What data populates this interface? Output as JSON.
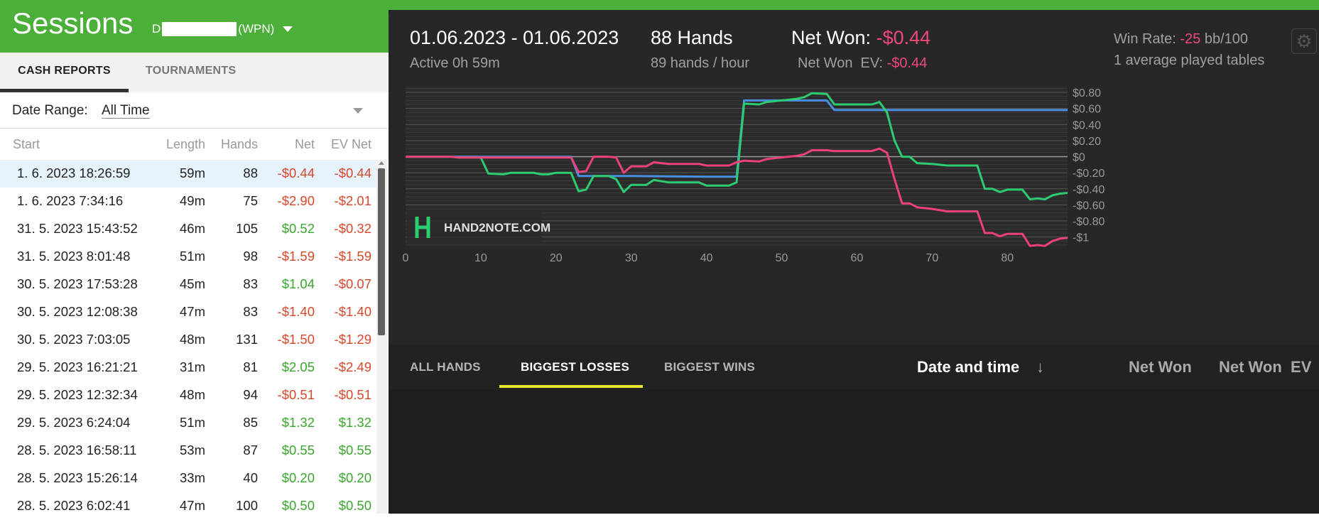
{
  "header": {
    "title": "Sessions",
    "account_prefix": "D",
    "account_suffix": "(WPN)"
  },
  "tabs": {
    "cash": "CASH REPORTS",
    "tournaments": "TOURNAMENTS"
  },
  "date_range": {
    "label": "Date Range:",
    "value": "All Time"
  },
  "table": {
    "headers": {
      "start": "Start",
      "length": "Length",
      "hands": "Hands",
      "net": "Net",
      "ev_net": "EV Net"
    },
    "rows": [
      {
        "start": "1. 6. 2023 18:26:59",
        "length": "59m",
        "hands": "88",
        "net": "-$0.44",
        "ev_net": "-$0.44"
      },
      {
        "start": "1. 6. 2023 7:34:16",
        "length": "49m",
        "hands": "75",
        "net": "-$2.90",
        "ev_net": "-$2.01"
      },
      {
        "start": "31. 5. 2023 15:43:52",
        "length": "46m",
        "hands": "105",
        "net": "$0.52",
        "ev_net": "-$0.32"
      },
      {
        "start": "31. 5. 2023 8:01:48",
        "length": "51m",
        "hands": "98",
        "net": "-$1.59",
        "ev_net": "-$1.59"
      },
      {
        "start": "30. 5. 2023 17:53:28",
        "length": "45m",
        "hands": "83",
        "net": "$1.04",
        "ev_net": "-$0.07"
      },
      {
        "start": "30. 5. 2023 12:08:38",
        "length": "47m",
        "hands": "83",
        "net": "-$1.40",
        "ev_net": "-$1.40"
      },
      {
        "start": "30. 5. 2023 7:03:05",
        "length": "48m",
        "hands": "131",
        "net": "-$1.50",
        "ev_net": "-$1.29"
      },
      {
        "start": "29. 5. 2023 16:21:21",
        "length": "31m",
        "hands": "81",
        "net": "$2.05",
        "ev_net": "-$2.49"
      },
      {
        "start": "29. 5. 2023 12:32:34",
        "length": "48m",
        "hands": "94",
        "net": "-$0.51",
        "ev_net": "-$0.51"
      },
      {
        "start": "29. 5. 2023 6:24:04",
        "length": "51m",
        "hands": "85",
        "net": "$1.32",
        "ev_net": "$1.32"
      },
      {
        "start": "28. 5. 2023 16:58:11",
        "length": "53m",
        "hands": "87",
        "net": "$0.55",
        "ev_net": "$0.55"
      },
      {
        "start": "28. 5. 2023 15:26:14",
        "length": "33m",
        "hands": "40",
        "net": "$0.20",
        "ev_net": "$0.20"
      },
      {
        "start": "28. 5. 2023 6:02:41",
        "length": "47m",
        "hands": "100",
        "net": "$0.50",
        "ev_net": "$0.50"
      }
    ]
  },
  "summary": {
    "date_range": "01.06.2023 - 01.06.2023",
    "active": "Active 0h 59m",
    "hands": "88 Hands",
    "hands_per_hour": "89 hands / hour",
    "net_won_label": "Net Won:",
    "net_won_value": "-$0.44",
    "net_won_ev_label": "Net Won  EV:",
    "net_won_ev_value": "-$0.44",
    "win_rate_label": "Win Rate:",
    "win_rate_value": "-25",
    "win_rate_unit": "bb/100",
    "tables": "1 average played tables"
  },
  "colors": {
    "green_bar": "#4caf3a",
    "negative": "#d9472b",
    "positive": "#3aa62d",
    "net_line": "#ec407a",
    "allin_ev_line": "#4a90e2",
    "showdown_line": "#2ecc71"
  },
  "watermark": "HAND2NOTE.COM",
  "bottom_tabs": {
    "all": "ALL HANDS",
    "losses": "BIGGEST LOSSES",
    "wins": "BIGGEST WINS"
  },
  "bottom_headers": {
    "date": "Date and time",
    "sort_arrow": "↓",
    "net_won": "Net Won",
    "net_won_ev": "Net Won  EV"
  },
  "icons": {
    "settings": "gear-icon",
    "sort": "arrow-down-icon",
    "dropdown": "chevron-down-icon"
  },
  "chart_data": {
    "type": "line",
    "xlabel": "",
    "ylabel": "",
    "xlim": [
      0,
      88
    ],
    "ylim": [
      -1.1,
      0.88
    ],
    "x_ticks": [
      0,
      10,
      20,
      30,
      40,
      50,
      60,
      70,
      80
    ],
    "x_tick_labels": [
      "0",
      "10",
      "20",
      "30",
      "40",
      "50",
      "60",
      "70",
      "80"
    ],
    "y_ticks": [
      0.8,
      0.6,
      0.4,
      0.2,
      0,
      -0.2,
      -0.4,
      -0.6,
      -0.8,
      -1
    ],
    "y_tick_labels": [
      "$0.80",
      "$0.60",
      "$0.40",
      "$0.20",
      "$0",
      "-$0.20",
      "-$0.40",
      "-$0.60",
      "-$0.80",
      "-$1"
    ],
    "series": [
      {
        "color": "#4a90e2",
        "points": [
          [
            0,
            0
          ],
          [
            22,
            0
          ],
          [
            23,
            -0.24
          ],
          [
            29,
            -0.24
          ],
          [
            40,
            -0.25
          ],
          [
            44,
            -0.25
          ],
          [
            45,
            0.7
          ],
          [
            56,
            0.7
          ],
          [
            57,
            0.58
          ],
          [
            88,
            0.58
          ]
        ]
      },
      {
        "color": "#2ecc71",
        "points": [
          [
            0,
            0
          ],
          [
            6,
            0
          ],
          [
            7,
            -0.01
          ],
          [
            10,
            -0.01
          ],
          [
            11,
            -0.21
          ],
          [
            13,
            -0.22
          ],
          [
            14,
            -0.2
          ],
          [
            17,
            -0.2
          ],
          [
            18,
            -0.22
          ],
          [
            19,
            -0.22
          ],
          [
            20,
            -0.2
          ],
          [
            22,
            -0.2
          ],
          [
            23,
            -0.43
          ],
          [
            24,
            -0.41
          ],
          [
            25,
            -0.24
          ],
          [
            27,
            -0.24
          ],
          [
            28,
            -0.28
          ],
          [
            29,
            -0.44
          ],
          [
            30,
            -0.35
          ],
          [
            32,
            -0.35
          ],
          [
            33,
            -0.29
          ],
          [
            35,
            -0.32
          ],
          [
            39,
            -0.32
          ],
          [
            40,
            -0.36
          ],
          [
            43,
            -0.36
          ],
          [
            44,
            -0.32
          ],
          [
            45,
            0.66
          ],
          [
            47,
            0.65
          ],
          [
            48,
            0.68
          ],
          [
            52,
            0.72
          ],
          [
            53,
            0.74
          ],
          [
            54,
            0.79
          ],
          [
            56,
            0.78
          ],
          [
            57,
            0.65
          ],
          [
            62,
            0.65
          ],
          [
            63,
            0.68
          ],
          [
            64,
            0.55
          ],
          [
            65,
            0.2
          ],
          [
            66,
            0
          ],
          [
            67,
            0
          ],
          [
            68,
            -0.08
          ],
          [
            70,
            -0.09
          ],
          [
            72,
            -0.11
          ],
          [
            76,
            -0.11
          ],
          [
            77,
            -0.4
          ],
          [
            78,
            -0.4
          ],
          [
            79,
            -0.44
          ],
          [
            80,
            -0.41
          ],
          [
            82,
            -0.41
          ],
          [
            83,
            -0.53
          ],
          [
            84,
            -0.52
          ],
          [
            85,
            -0.53
          ],
          [
            86,
            -0.48
          ],
          [
            87,
            -0.46
          ],
          [
            88,
            -0.45
          ]
        ]
      },
      {
        "color": "#ec407a",
        "points": [
          [
            0,
            0
          ],
          [
            6,
            0
          ],
          [
            7,
            -0.01
          ],
          [
            10,
            -0.01
          ],
          [
            11,
            -0.01
          ],
          [
            22,
            -0.01
          ],
          [
            23,
            -0.19
          ],
          [
            24,
            -0.18
          ],
          [
            25,
            0
          ],
          [
            27,
            0
          ],
          [
            28,
            -0.01
          ],
          [
            29,
            -0.2
          ],
          [
            30,
            -0.12
          ],
          [
            32,
            -0.12
          ],
          [
            33,
            -0.07
          ],
          [
            35,
            -0.09
          ],
          [
            39,
            -0.09
          ],
          [
            40,
            -0.11
          ],
          [
            43,
            -0.11
          ],
          [
            44,
            -0.07
          ],
          [
            45,
            -0.05
          ],
          [
            47,
            -0.06
          ],
          [
            48,
            -0.03
          ],
          [
            52,
            0.01
          ],
          [
            53,
            0.03
          ],
          [
            54,
            0.08
          ],
          [
            56,
            0.08
          ],
          [
            57,
            0.07
          ],
          [
            62,
            0.07
          ],
          [
            63,
            0.1
          ],
          [
            64,
            0.05
          ],
          [
            65,
            -0.28
          ],
          [
            66,
            -0.58
          ],
          [
            67,
            -0.58
          ],
          [
            68,
            -0.63
          ],
          [
            70,
            -0.65
          ],
          [
            72,
            -0.68
          ],
          [
            76,
            -0.68
          ],
          [
            77,
            -0.95
          ],
          [
            78,
            -0.95
          ],
          [
            79,
            -0.99
          ],
          [
            80,
            -0.96
          ],
          [
            82,
            -0.96
          ],
          [
            83,
            -1.11
          ],
          [
            84,
            -1.1
          ],
          [
            85,
            -1.11
          ],
          [
            86,
            -1.05
          ],
          [
            87,
            -1.02
          ],
          [
            88,
            -1.01
          ]
        ]
      }
    ]
  }
}
